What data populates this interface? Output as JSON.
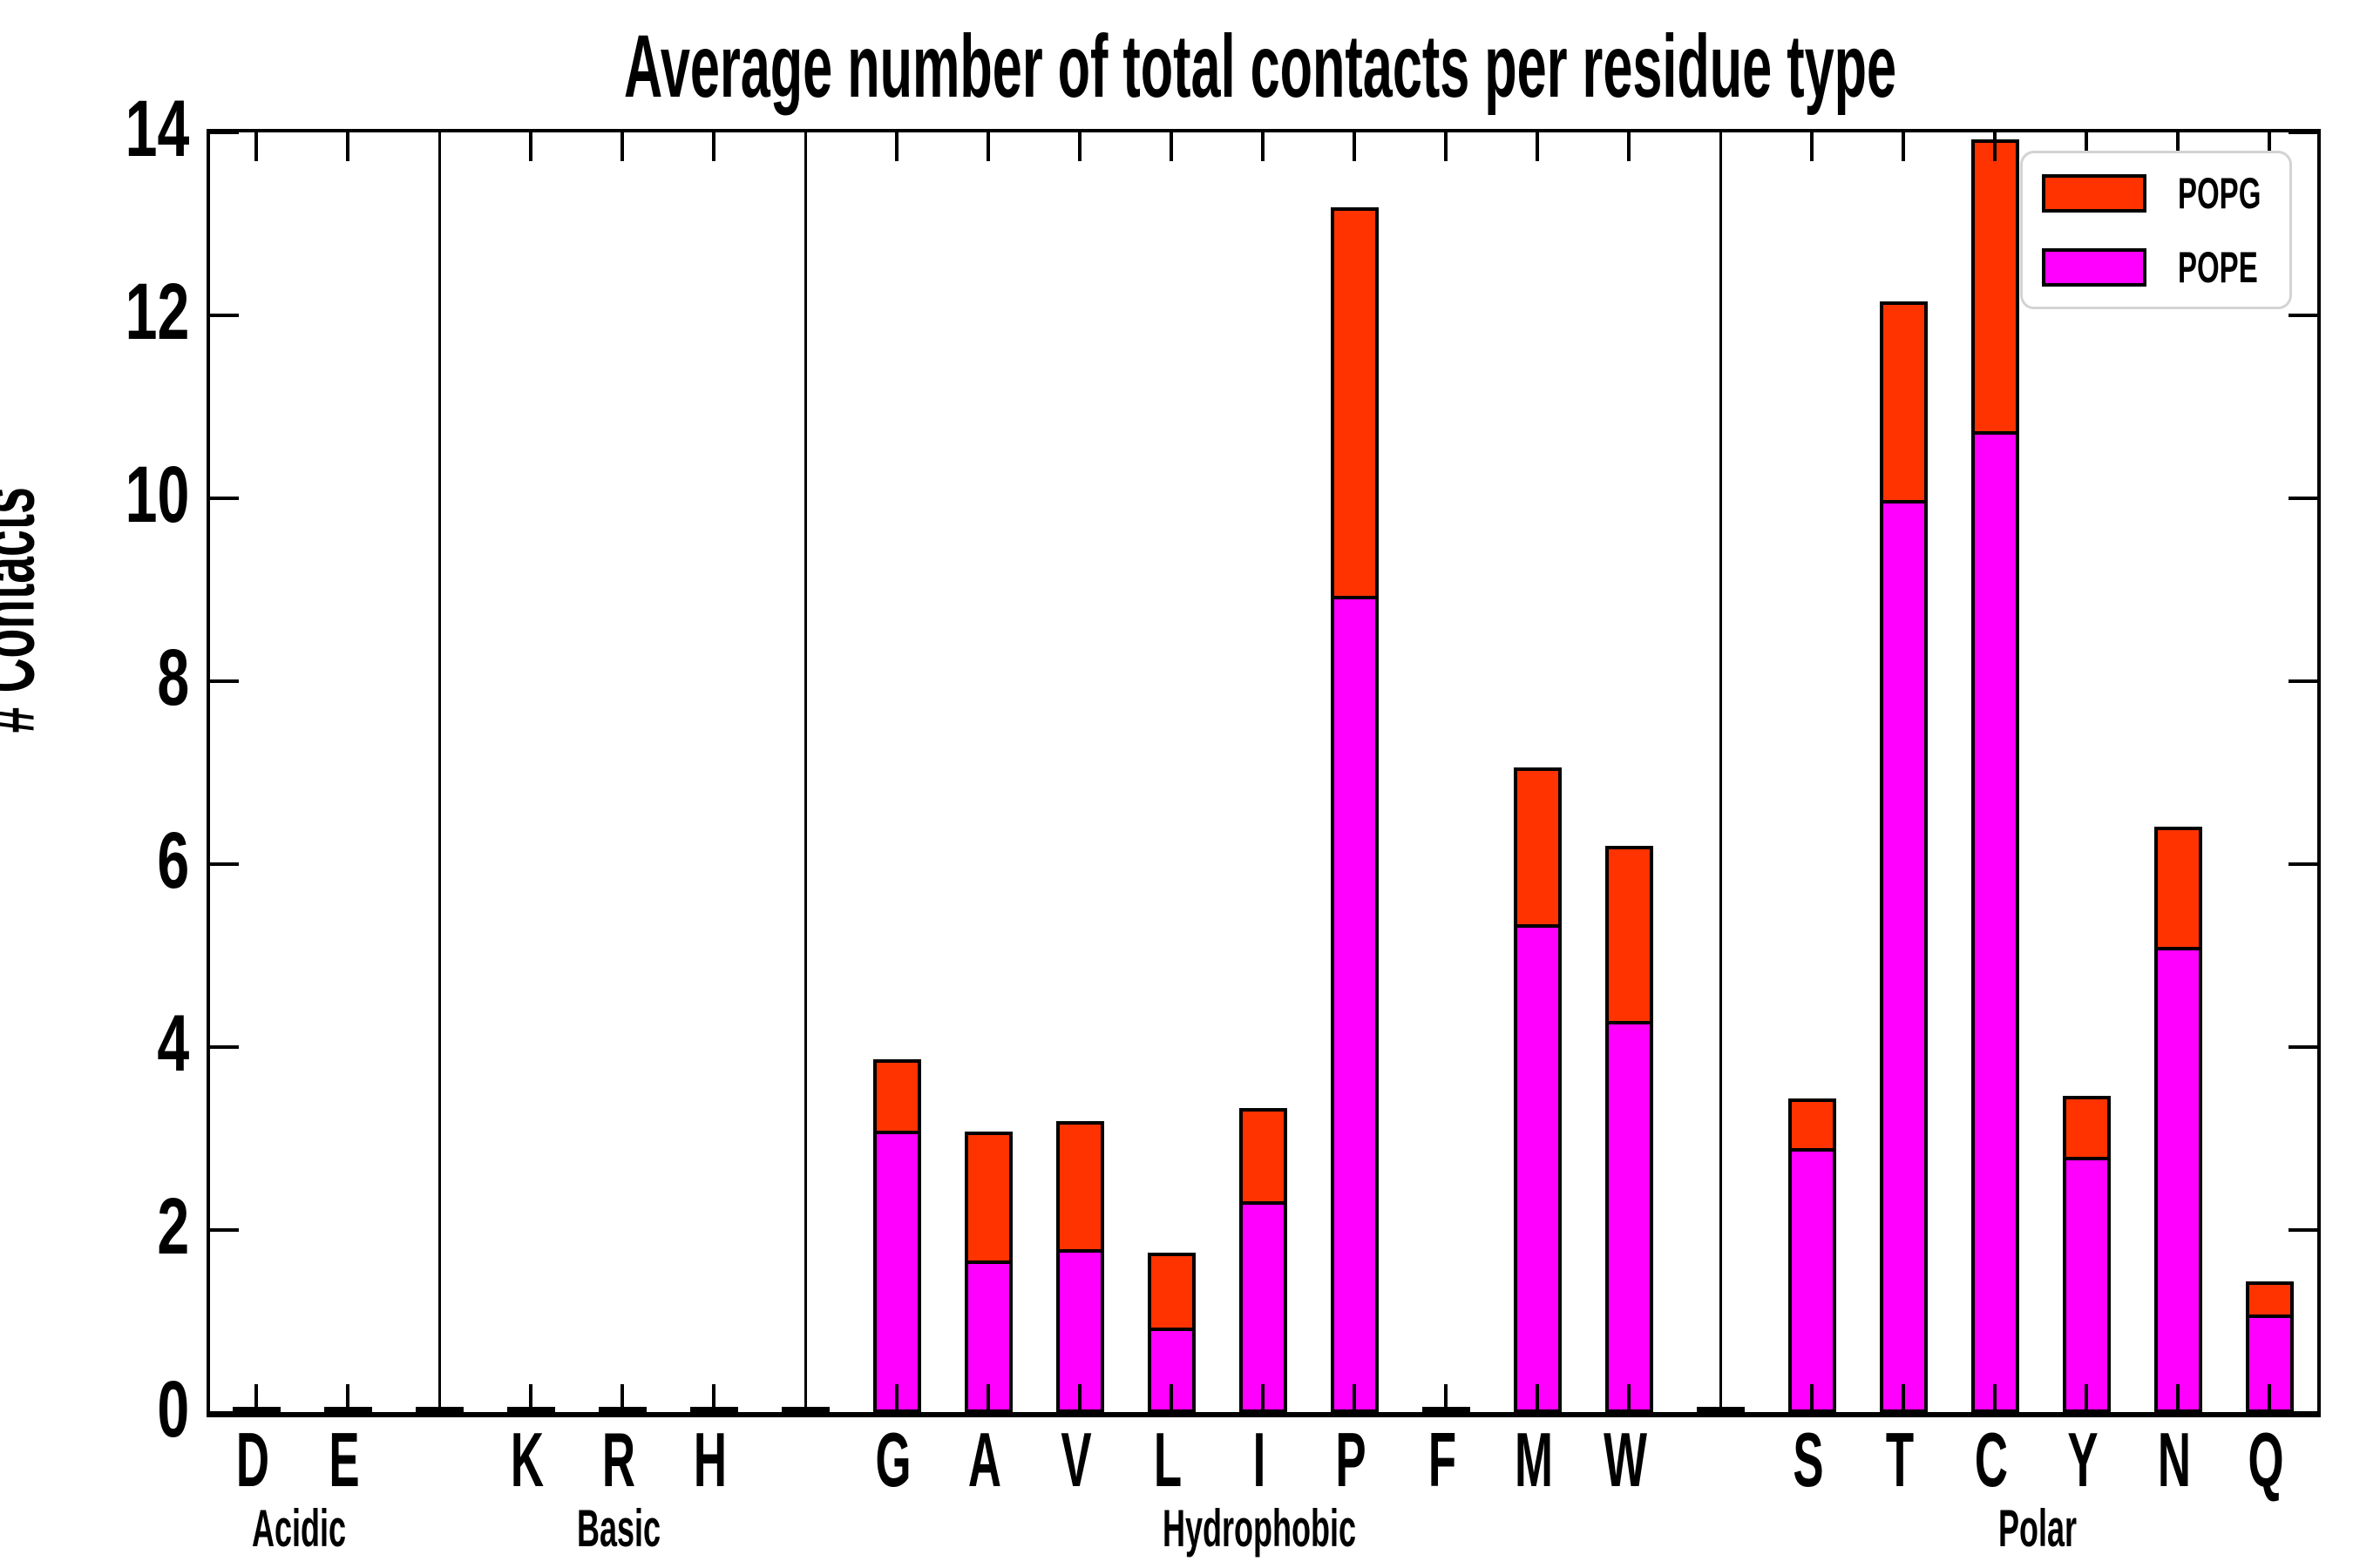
{
  "title": "Average number of total contacts per residue type",
  "ylabel": "# Contacts",
  "legend": {
    "items": [
      {
        "label": "POPG",
        "color": "#ff3300"
      },
      {
        "label": "POPE",
        "color": "#ff00ff"
      }
    ]
  },
  "yticks": [
    "0",
    "2",
    "4",
    "6",
    "8",
    "10",
    "12",
    "14"
  ],
  "chart_data": {
    "type": "bar",
    "stacked": true,
    "title": "Average number of total contacts per residue type",
    "xlabel": "",
    "ylabel": "# Contacts",
    "ylim": [
      0,
      14
    ],
    "ytick_step": 2,
    "grid": false,
    "legend_position": "upper right",
    "group_order": [
      "Acidic",
      "Basic",
      "Hydrophobic",
      "Polar"
    ],
    "categories": [
      "D",
      "E",
      "K",
      "R",
      "H",
      "G",
      "A",
      "V",
      "L",
      "I",
      "P",
      "F",
      "M",
      "W",
      "S",
      "T",
      "C",
      "Y",
      "N",
      "Q"
    ],
    "category_groups": [
      "Acidic",
      "Acidic",
      "Basic",
      "Basic",
      "Basic",
      "Hydrophobic",
      "Hydrophobic",
      "Hydrophobic",
      "Hydrophobic",
      "Hydrophobic",
      "Hydrophobic",
      "Hydrophobic",
      "Hydrophobic",
      "Hydrophobic",
      "Polar",
      "Polar",
      "Polar",
      "Polar",
      "Polar",
      "Polar"
    ],
    "series": [
      {
        "name": "POPE",
        "color": "#ff00ff",
        "values": [
          0.02,
          0.02,
          0.02,
          0.02,
          0.02,
          3.09,
          1.67,
          1.79,
          0.93,
          2.31,
          8.93,
          0.02,
          5.34,
          4.29,
          2.9,
          9.98,
          10.73,
          2.8,
          5.1,
          1.08
        ]
      },
      {
        "name": "POPG",
        "color": "#ff3300",
        "values": [
          0.01,
          0.01,
          0.01,
          0.01,
          0.01,
          0.78,
          1.41,
          1.4,
          0.82,
          1.02,
          4.25,
          0.01,
          1.72,
          1.91,
          0.54,
          2.17,
          3.19,
          0.67,
          1.31,
          0.36
        ]
      }
    ]
  }
}
